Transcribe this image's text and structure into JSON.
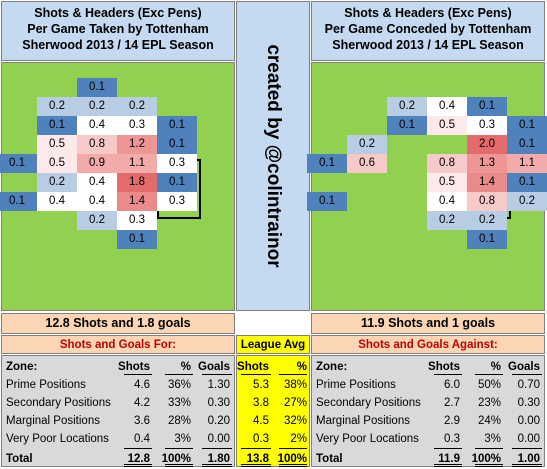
{
  "left_title": [
    "Shots & Headers (Exc Pens)",
    "Per Game Taken by Tottenham",
    "Sherwood 2013 / 14 EPL Season"
  ],
  "right_title": [
    "Shots & Headers (Exc Pens)",
    "Per Game Conceded by Tottenham",
    "Sherwood 2013 / 14 EPL Season"
  ],
  "credit": "created by @colintrainor",
  "colors": {
    "pitch": "#92d050",
    "title_bg": "#c5d9f1",
    "summary_bg": "#fcd5b4",
    "table_bg": "#d9d9d9",
    "league_bg": "#ffff00",
    "heading_red": "#c00000"
  },
  "chart_data": [
    {
      "type": "heatmap",
      "title": "Shots & Headers (Exc Pens) Per Game Taken by Tottenham",
      "columns": 6,
      "cells": [
        {
          "r": 0,
          "c": 2,
          "v": "0.1"
        },
        {
          "r": 1,
          "c": 1,
          "v": "0.2"
        },
        {
          "r": 1,
          "c": 2,
          "v": "0.2"
        },
        {
          "r": 1,
          "c": 3,
          "v": "0.2"
        },
        {
          "r": 2,
          "c": 1,
          "v": "0.1"
        },
        {
          "r": 2,
          "c": 2,
          "v": "0.4"
        },
        {
          "r": 2,
          "c": 3,
          "v": "0.3"
        },
        {
          "r": 2,
          "c": 4,
          "v": "0.1"
        },
        {
          "r": 3,
          "c": 1,
          "v": "0.5"
        },
        {
          "r": 3,
          "c": 2,
          "v": "0.8"
        },
        {
          "r": 3,
          "c": 3,
          "v": "1.2"
        },
        {
          "r": 3,
          "c": 4,
          "v": "0.1"
        },
        {
          "r": 4,
          "c": 0,
          "v": "0.1"
        },
        {
          "r": 4,
          "c": 1,
          "v": "0.5"
        },
        {
          "r": 4,
          "c": 2,
          "v": "0.9"
        },
        {
          "r": 4,
          "c": 3,
          "v": "1.1"
        },
        {
          "r": 4,
          "c": 4,
          "v": "0.3"
        },
        {
          "r": 5,
          "c": 1,
          "v": "0.2"
        },
        {
          "r": 5,
          "c": 2,
          "v": "0.4"
        },
        {
          "r": 5,
          "c": 3,
          "v": "1.8"
        },
        {
          "r": 5,
          "c": 4,
          "v": "0.1"
        },
        {
          "r": 6,
          "c": 0,
          "v": "0.1"
        },
        {
          "r": 6,
          "c": 1,
          "v": "0.4"
        },
        {
          "r": 6,
          "c": 2,
          "v": "0.4"
        },
        {
          "r": 6,
          "c": 3,
          "v": "1.4"
        },
        {
          "r": 6,
          "c": 4,
          "v": "0.3"
        },
        {
          "r": 7,
          "c": 2,
          "v": "0.2"
        },
        {
          "r": 7,
          "c": 3,
          "v": "0.3"
        },
        {
          "r": 8,
          "c": 3,
          "v": "0.1"
        }
      ]
    },
    {
      "type": "heatmap",
      "title": "Shots & Headers (Exc Pens) Per Game Conceded by Tottenham",
      "columns": 6,
      "cells": [
        {
          "r": 1,
          "c": 2,
          "v": "0.2"
        },
        {
          "r": 1,
          "c": 3,
          "v": "0.4"
        },
        {
          "r": 1,
          "c": 4,
          "v": "0.1"
        },
        {
          "r": 2,
          "c": 2,
          "v": "0.1"
        },
        {
          "r": 2,
          "c": 3,
          "v": "0.5"
        },
        {
          "r": 2,
          "c": 4,
          "v": "0.3"
        },
        {
          "r": 2,
          "c": 5,
          "v": "0.1"
        },
        {
          "r": 3,
          "c": 1,
          "v": "0.2"
        },
        {
          "r": 3,
          "c": 4,
          "v": "2.0"
        },
        {
          "r": 3,
          "c": 5,
          "v": "0.1"
        },
        {
          "r": 4,
          "c": 0,
          "v": "0.1"
        },
        {
          "r": 4,
          "c": 1,
          "v": "0.6"
        },
        {
          "r": 4,
          "c": 3,
          "v": "0.8"
        },
        {
          "r": 4,
          "c": 4,
          "v": "1.3"
        },
        {
          "r": 4,
          "c": 5,
          "v": "1.1"
        },
        {
          "r": 5,
          "c": 3,
          "v": "0.5"
        },
        {
          "r": 5,
          "c": 4,
          "v": "1.4"
        },
        {
          "r": 5,
          "c": 5,
          "v": "0.1"
        },
        {
          "r": 6,
          "c": 0,
          "v": "0.1"
        },
        {
          "r": 6,
          "c": 3,
          "v": "0.4"
        },
        {
          "r": 6,
          "c": 4,
          "v": "0.8"
        },
        {
          "r": 6,
          "c": 5,
          "v": "0.2"
        },
        {
          "r": 7,
          "c": 3,
          "v": "0.2"
        },
        {
          "r": 7,
          "c": 4,
          "v": "0.2"
        },
        {
          "r": 8,
          "c": 4,
          "v": "0.1"
        }
      ]
    },
    {
      "type": "table",
      "title": "Shots and Goals For:",
      "summary": "12.8 Shots and 1.8 goals",
      "headers": [
        "Zone:",
        "Shots",
        "%",
        "Goals"
      ],
      "rows": [
        [
          "Prime Positions",
          "4.6",
          "36%",
          "1.30"
        ],
        [
          "Secondary Positions",
          "4.2",
          "33%",
          "0.30"
        ],
        [
          "Marginal Positions",
          "3.6",
          "28%",
          "0.20"
        ],
        [
          "Very Poor Locations",
          "0.4",
          "3%",
          "0.00"
        ],
        [
          "Total",
          "12.8",
          "100%",
          "1.80"
        ]
      ]
    },
    {
      "type": "table",
      "title": "League Avg",
      "headers": [
        "Shots",
        "%"
      ],
      "rows": [
        [
          "5.3",
          "38%"
        ],
        [
          "3.8",
          "27%"
        ],
        [
          "4.5",
          "32%"
        ],
        [
          "0.3",
          "2%"
        ],
        [
          "13.8",
          "100%"
        ]
      ]
    },
    {
      "type": "table",
      "title": "Shots and Goals Against:",
      "summary": "11.9 Shots and 1 goals",
      "headers": [
        "Zone:",
        "Shots",
        "%",
        "Goals"
      ],
      "rows": [
        [
          "Prime Positions",
          "6.0",
          "50%",
          "0.70"
        ],
        [
          "Secondary Positions",
          "2.7",
          "23%",
          "0.30"
        ],
        [
          "Marginal Positions",
          "2.9",
          "24%",
          "0.00"
        ],
        [
          "Very Poor Locations",
          "0.3",
          "3%",
          "0.00"
        ],
        [
          "Total",
          "11.9",
          "100%",
          "1.00"
        ]
      ]
    }
  ]
}
